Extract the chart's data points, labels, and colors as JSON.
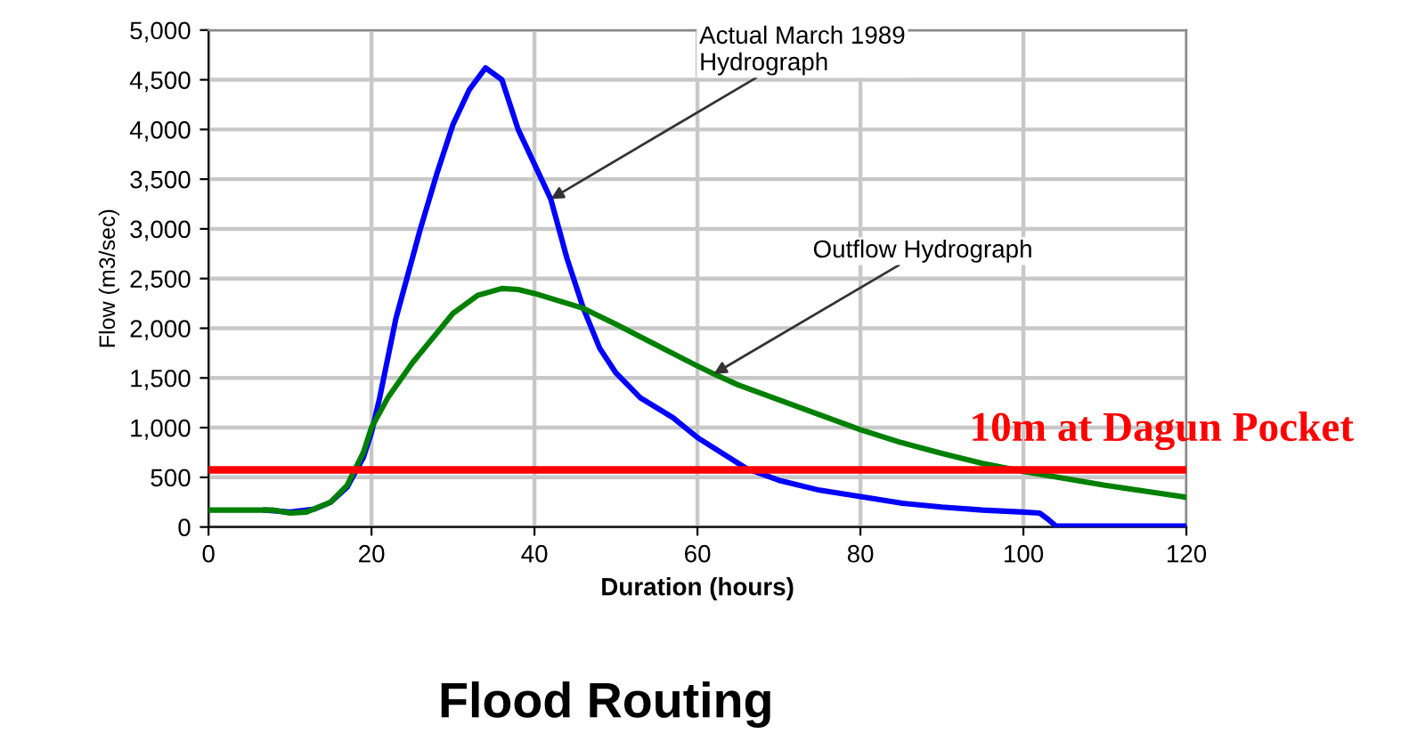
{
  "chart_data": {
    "type": "line",
    "title": "Flood Routing",
    "xlabel": "Duration (hours)",
    "ylabel": "Flow (m3/sec)",
    "xlim": [
      0,
      120
    ],
    "xticks": [
      0,
      20,
      40,
      60,
      80,
      100,
      120
    ],
    "ylim": [
      0,
      5000
    ],
    "yticks": [
      0,
      500,
      {
        "value": 1000,
        "label": "1,000"
      },
      {
        "value": 1500,
        "label": "1,500"
      },
      {
        "value": 2000,
        "label": "2,000"
      },
      {
        "value": 2500,
        "label": "2,500"
      },
      {
        "value": 3000,
        "label": "3,000"
      },
      {
        "value": 3500,
        "label": "3,500"
      },
      {
        "value": 4000,
        "label": "4,000"
      },
      {
        "value": 4500,
        "label": "4,500"
      },
      {
        "value": 5000,
        "label": "5,000"
      }
    ],
    "grid": true,
    "marker": "none",
    "line_style": "solid",
    "series": [
      {
        "color": "#0000ff",
        "x": [
          7,
          10,
          13,
          15,
          17,
          19,
          20,
          21,
          23,
          26,
          28,
          30,
          32,
          34,
          36,
          38,
          40,
          42,
          44,
          46,
          48,
          50,
          53,
          57,
          60,
          66,
          70,
          75,
          79,
          85,
          90,
          95,
          100,
          102,
          103,
          104,
          110,
          120
        ],
        "values": [
          170,
          150,
          180,
          250,
          400,
          700,
          950,
          1300,
          2100,
          3000,
          3550,
          4050,
          4400,
          4620,
          4500,
          4000,
          3650,
          3300,
          2700,
          2200,
          1800,
          1550,
          1300,
          1100,
          900,
          590,
          470,
          370,
          320,
          240,
          200,
          170,
          150,
          140,
          80,
          10,
          10,
          10
        ]
      },
      {
        "color": "#008000",
        "x": [
          0,
          8,
          10,
          12,
          15,
          17,
          19,
          20,
          22,
          25,
          28,
          30,
          33,
          36,
          38,
          40,
          46,
          50,
          55,
          60,
          62,
          65,
          70,
          75,
          80,
          85,
          90,
          95,
          100,
          105,
          110,
          115,
          120
        ],
        "values": [
          170,
          170,
          140,
          150,
          250,
          420,
          750,
          1000,
          1300,
          1650,
          1950,
          2150,
          2330,
          2400,
          2390,
          2350,
          2200,
          2040,
          1830,
          1620,
          1540,
          1430,
          1280,
          1130,
          980,
          850,
          740,
          640,
          560,
          490,
          420,
          360,
          300
        ]
      }
    ],
    "ref_lines": [
      {
        "axis": "y",
        "value": 575,
        "label": "10m at Dagun Pocket",
        "color": "#ff0000"
      }
    ],
    "annotations": [
      {
        "text": "Actual March 1989\nHydrograph",
        "x": 42,
        "y": 3300
      },
      {
        "text": "Outflow Hydrograph",
        "x": 62,
        "y": 1540
      }
    ]
  }
}
